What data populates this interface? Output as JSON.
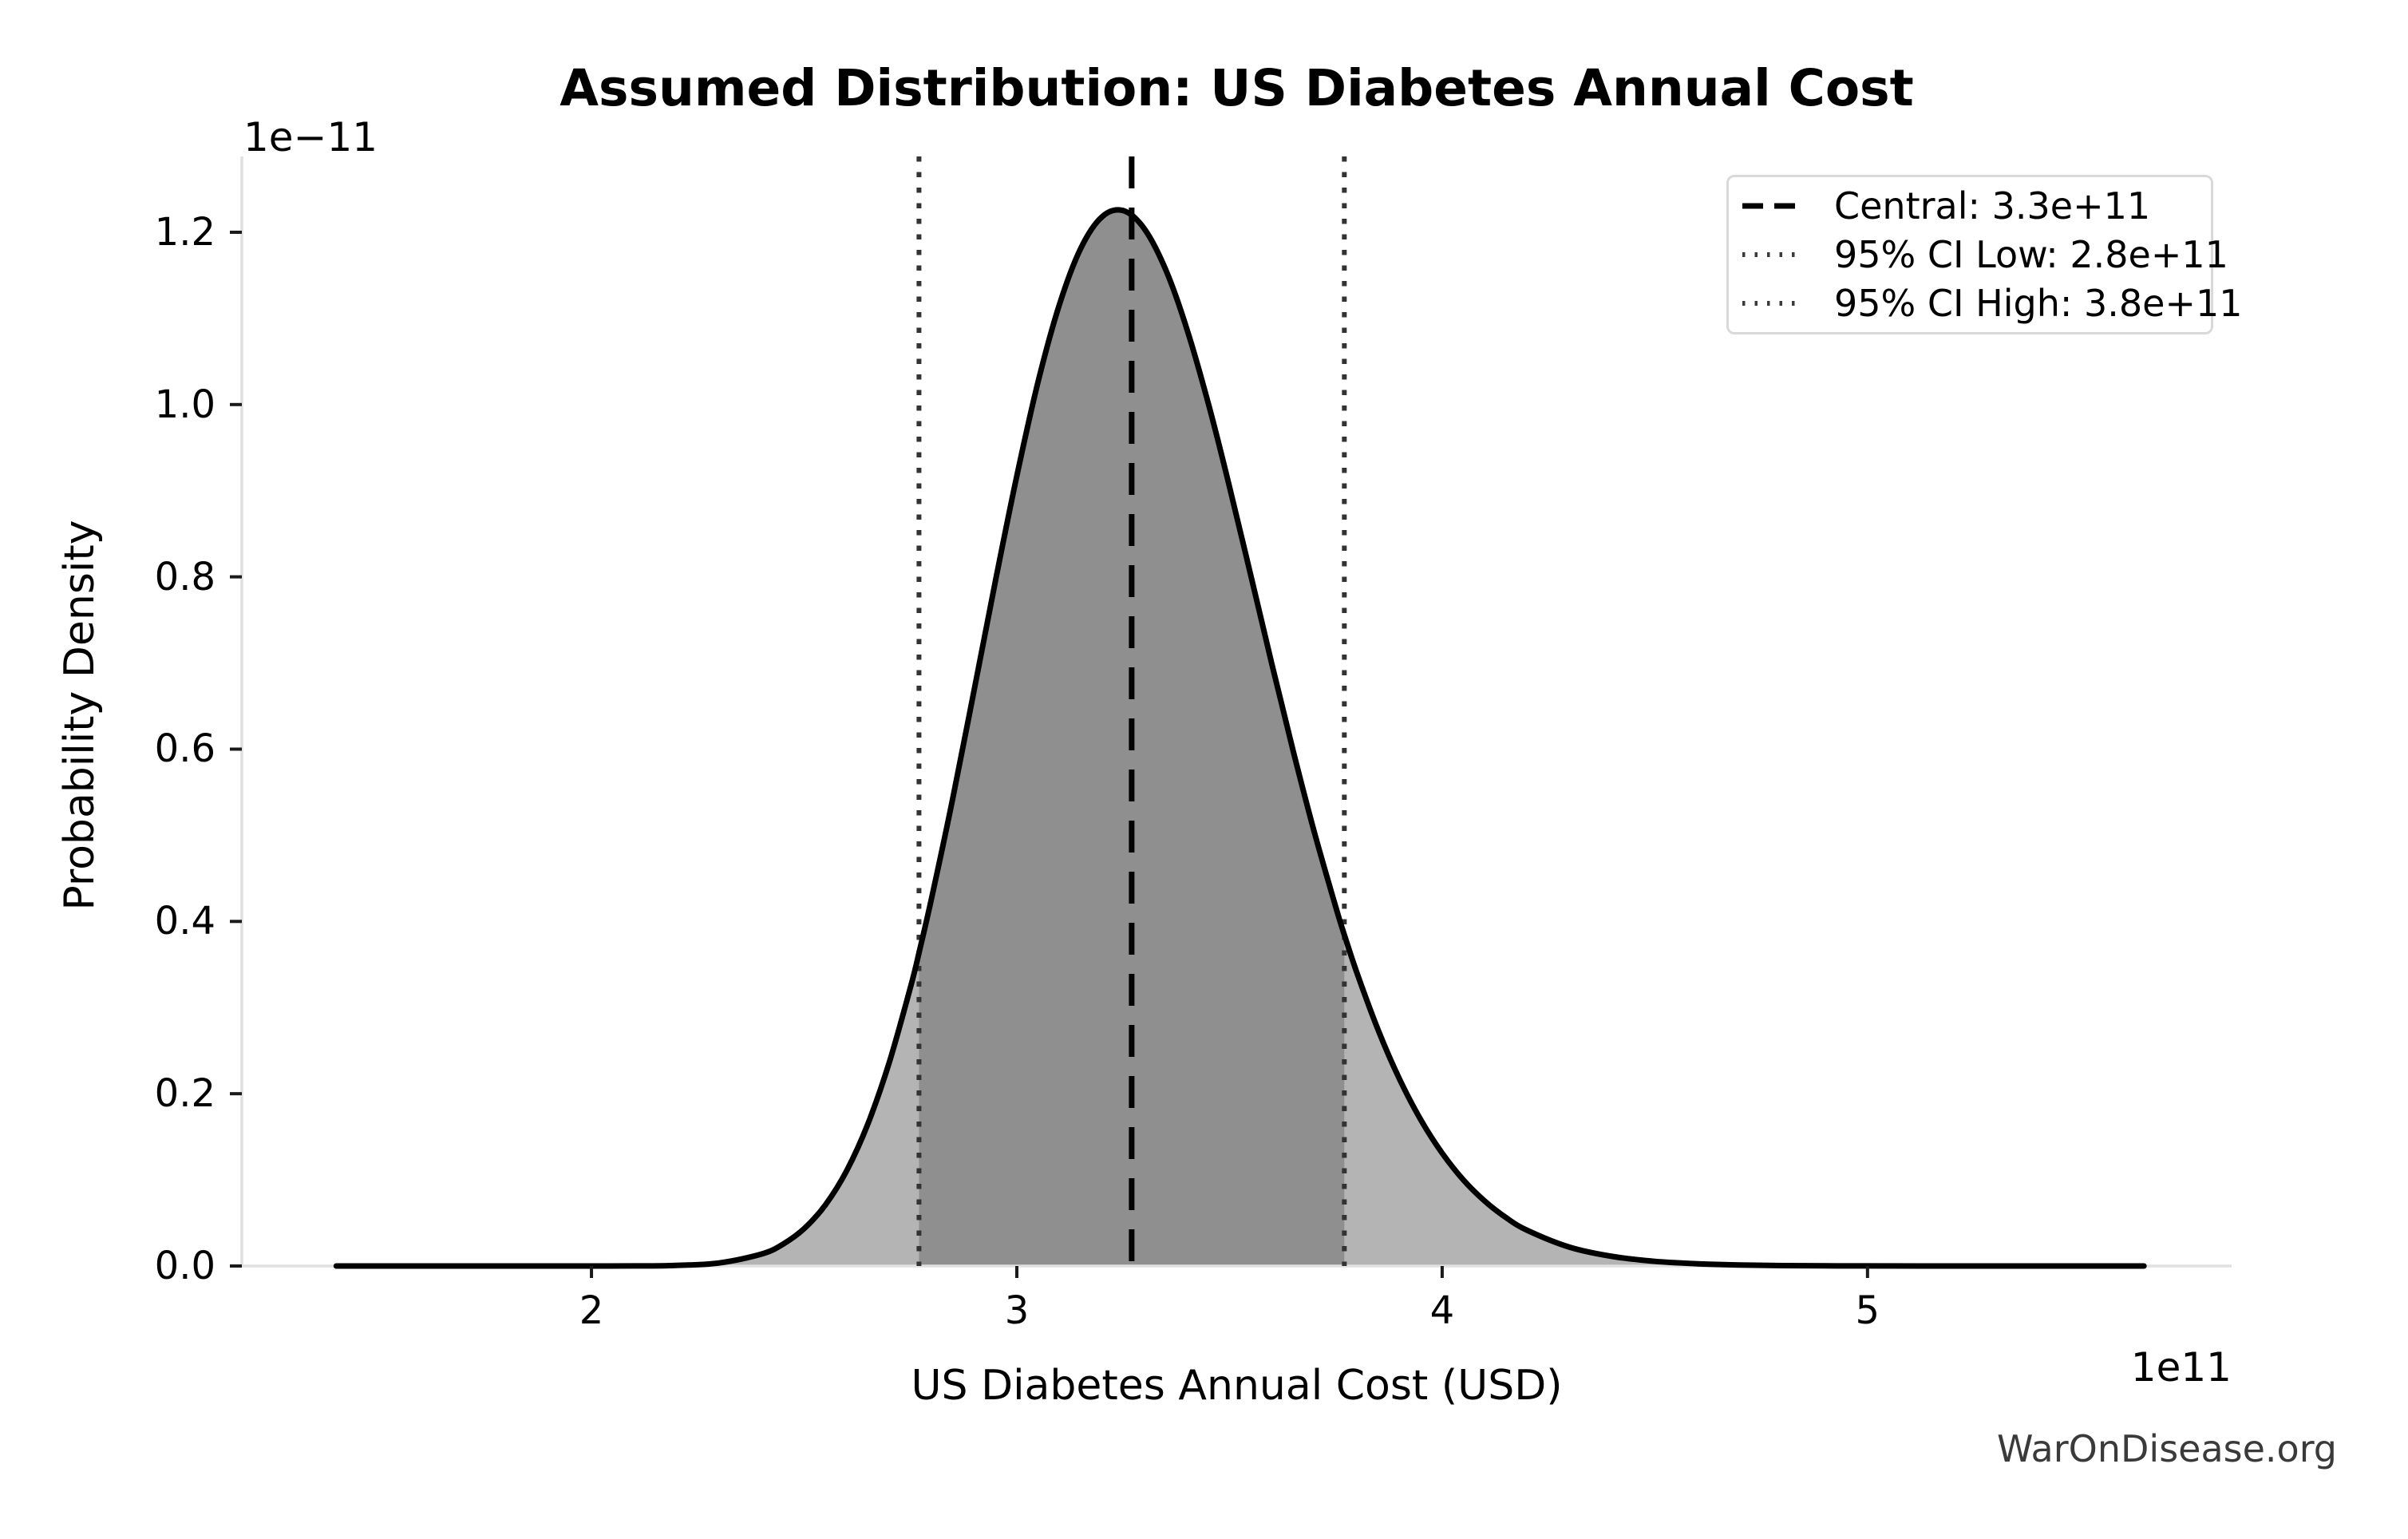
{
  "title": "Assumed Distribution: US Diabetes Annual Cost",
  "watermark": "WarOnDisease.org",
  "axes": {
    "x_label": "US Diabetes Annual Cost (USD)",
    "y_label": "Probability Density",
    "x_offset_text": "1e11",
    "y_offset_text": "1e−11",
    "x_ticks": [
      2,
      3,
      4,
      5
    ],
    "y_ticks": [
      "0.0",
      "0.2",
      "0.4",
      "0.6",
      "0.8",
      "1.0",
      "1.2"
    ],
    "y_tick_values": [
      0,
      0.2,
      0.4,
      0.6,
      0.8,
      1.0,
      1.2
    ]
  },
  "legend": {
    "items": [
      {
        "label": "Central: 3.3e+11",
        "style": "dashed",
        "color": "#000000"
      },
      {
        "label": "95% CI Low: 2.8e+11",
        "style": "dotted",
        "color": "#3a3a3a"
      },
      {
        "label": "95% CI High: 3.8e+11",
        "style": "dotted",
        "color": "#3a3a3a"
      }
    ]
  },
  "chart_data": {
    "type": "area",
    "title": "Assumed Distribution: US Diabetes Annual Cost",
    "xlabel": "US Diabetes Annual Cost (USD)",
    "ylabel": "Probability Density",
    "x_unit_multiplier": "1e11",
    "y_unit_multiplier": "1e-11",
    "xlim": [
      1.178,
      5.856
    ],
    "ylim": [
      0,
      1.288
    ],
    "grid": false,
    "legend_position": "upper right",
    "curve": {
      "description": "probability density curve (lognormal-shaped, median ~3.27e11, peak ~1.23e-11)",
      "x": [
        1.4,
        1.6,
        1.8,
        1.9,
        2.0,
        2.1,
        2.2,
        2.3,
        2.4,
        2.45,
        2.5,
        2.55,
        2.6,
        2.65,
        2.7,
        2.75,
        2.77,
        2.8,
        2.85,
        2.9,
        2.95,
        3.0,
        3.05,
        3.1,
        3.15,
        3.2,
        3.25,
        3.3,
        3.35,
        3.4,
        3.45,
        3.5,
        3.55,
        3.6,
        3.65,
        3.7,
        3.75,
        3.77,
        3.8,
        3.85,
        3.9,
        3.95,
        4.0,
        4.05,
        4.1,
        4.15,
        4.2,
        4.3,
        4.4,
        4.5,
        4.6,
        4.7,
        4.8,
        4.9,
        5.0,
        5.2,
        5.4,
        5.65
      ],
      "density": [
        0,
        0,
        0,
        0,
        0,
        0.0001,
        0.0007,
        0.0035,
        0.0139,
        0.0253,
        0.0434,
        0.071,
        0.1106,
        0.1652,
        0.2361,
        0.3238,
        0.3634,
        0.4279,
        0.5441,
        0.6695,
        0.7958,
        0.9172,
        1.0264,
        1.1159,
        1.181,
        1.2179,
        1.2252,
        1.2039,
        1.1566,
        1.0875,
        1.0017,
        0.9047,
        0.8018,
        0.698,
        0.5973,
        0.5027,
        0.4164,
        0.3845,
        0.3398,
        0.2733,
        0.2167,
        0.1695,
        0.131,
        0.0999,
        0.0754,
        0.0562,
        0.0414,
        0.0218,
        0.0111,
        0.0054,
        0.0026,
        0.0012,
        0.0005,
        0.0002,
        0.0001,
        0,
        0,
        0
      ]
    },
    "vlines": {
      "central": {
        "x": 3.27,
        "label": "Central: 3.3e+11",
        "style": "dashed",
        "color": "#000000"
      },
      "ci_low": {
        "x": 2.77,
        "label": "95% CI Low: 2.8e+11",
        "style": "dotted",
        "color": "#333333"
      },
      "ci_high": {
        "x": 3.77,
        "label": "95% CI High: 3.8e+11",
        "style": "dotted",
        "color": "#333333"
      }
    },
    "ci_fill_range": [
      2.77,
      3.77
    ],
    "colors": {
      "curve": "#000000",
      "fill_tails": "#b4b4b4",
      "fill_ci": "#8f8f8f",
      "dashed_line": "#000000",
      "dotted_line": "#333333",
      "spine": "#e0e0e0",
      "tick": "#1a1a1a",
      "text": "#000000",
      "watermark": "#3a3a3a",
      "legend_border": "#d9d9d9"
    }
  }
}
